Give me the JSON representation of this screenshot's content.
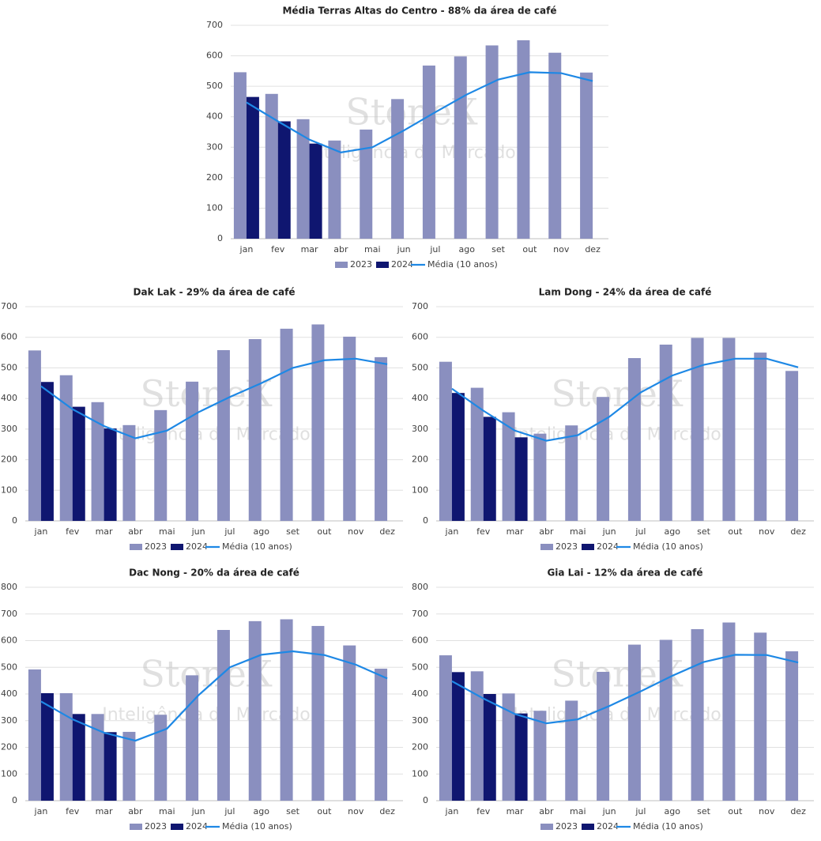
{
  "chart_data": [
    {
      "type": "bar",
      "title": "Média Terras Altas do Centro - 88% da área de café",
      "watermark": "StoneX",
      "watermark_subtitle": "Inteligência de Mercado",
      "categories": [
        "jan",
        "fev",
        "mar",
        "abr",
        "mai",
        "jun",
        "jul",
        "ago",
        "set",
        "out",
        "nov",
        "dez"
      ],
      "ylim": [
        0,
        700
      ],
      "yticks": [
        0,
        100,
        200,
        300,
        400,
        500,
        600,
        700
      ],
      "grid": true,
      "series": [
        {
          "name": "2023",
          "type": "bar",
          "color": "#8a8fbf",
          "values": [
            546,
            475,
            392,
            322,
            358,
            458,
            568,
            598,
            634,
            651,
            610,
            545
          ]
        },
        {
          "name": "2024",
          "type": "bar",
          "color": "#0f1670",
          "values": [
            465,
            385,
            312,
            null,
            null,
            null,
            null,
            null,
            null,
            null,
            null,
            null
          ]
        },
        {
          "name": "Média (10 anos)",
          "type": "line",
          "color": "#1e88e5",
          "values": [
            447,
            385,
            325,
            283,
            300,
            355,
            415,
            473,
            522,
            546,
            543,
            517
          ]
        }
      ]
    },
    {
      "type": "bar",
      "title": "Dak Lak - 29% da área de café",
      "watermark": "StoneX",
      "watermark_subtitle": "Inteligência de Mercado",
      "categories": [
        "jan",
        "fev",
        "mar",
        "abr",
        "mai",
        "jun",
        "jul",
        "ago",
        "set",
        "out",
        "nov",
        "dez"
      ],
      "ylim": [
        0,
        700
      ],
      "yticks": [
        0,
        100,
        200,
        300,
        400,
        500,
        600,
        700
      ],
      "grid": true,
      "series": [
        {
          "name": "2023",
          "type": "bar",
          "color": "#8a8fbf",
          "values": [
            557,
            476,
            388,
            313,
            362,
            455,
            558,
            594,
            628,
            642,
            602,
            535
          ]
        },
        {
          "name": "2024",
          "type": "bar",
          "color": "#0f1670",
          "values": [
            454,
            373,
            302,
            null,
            null,
            null,
            null,
            null,
            null,
            null,
            null,
            null
          ]
        },
        {
          "name": "Média (10 anos)",
          "type": "line",
          "color": "#1e88e5",
          "values": [
            440,
            365,
            310,
            270,
            295,
            355,
            405,
            450,
            500,
            525,
            530,
            512
          ]
        }
      ]
    },
    {
      "type": "bar",
      "title": "Lam Dong - 24% da área de café",
      "watermark": "StoneX",
      "watermark_subtitle": "Inteligência de Mercado",
      "categories": [
        "jan",
        "fev",
        "mar",
        "abr",
        "mai",
        "jun",
        "jul",
        "ago",
        "set",
        "out",
        "nov",
        "dez"
      ],
      "ylim": [
        0,
        700
      ],
      "yticks": [
        0,
        100,
        200,
        300,
        400,
        500,
        600,
        700
      ],
      "grid": true,
      "series": [
        {
          "name": "2023",
          "type": "bar",
          "color": "#8a8fbf",
          "values": [
            520,
            435,
            355,
            285,
            312,
            405,
            532,
            576,
            598,
            598,
            550,
            490
          ]
        },
        {
          "name": "2024",
          "type": "bar",
          "color": "#0f1670",
          "values": [
            418,
            340,
            273,
            null,
            null,
            null,
            null,
            null,
            null,
            null,
            null,
            null
          ]
        },
        {
          "name": "Média (10 anos)",
          "type": "line",
          "color": "#1e88e5",
          "values": [
            432,
            360,
            295,
            262,
            280,
            340,
            420,
            475,
            510,
            530,
            530,
            502
          ]
        }
      ]
    },
    {
      "type": "bar",
      "title": "Dac Nong - 20% da área de café",
      "watermark": "StoneX",
      "watermark_subtitle": "Inteligência de Mercado",
      "categories": [
        "jan",
        "fev",
        "mar",
        "abr",
        "mai",
        "jun",
        "jul",
        "ago",
        "set",
        "out",
        "nov",
        "dez"
      ],
      "ylim": [
        0,
        800
      ],
      "yticks": [
        0,
        100,
        200,
        300,
        400,
        500,
        600,
        700,
        800
      ],
      "grid": true,
      "series": [
        {
          "name": "2023",
          "type": "bar",
          "color": "#8a8fbf",
          "values": [
            492,
            403,
            325,
            258,
            322,
            470,
            640,
            673,
            680,
            655,
            582,
            495
          ]
        },
        {
          "name": "2024",
          "type": "bar",
          "color": "#0f1670",
          "values": [
            403,
            325,
            257,
            null,
            null,
            null,
            null,
            null,
            null,
            null,
            null,
            null
          ]
        },
        {
          "name": "Média (10 anos)",
          "type": "line",
          "color": "#1e88e5",
          "values": [
            372,
            305,
            255,
            225,
            270,
            395,
            500,
            547,
            560,
            546,
            510,
            458
          ]
        }
      ]
    },
    {
      "type": "bar",
      "title": "Gia Lai - 12% da área de café",
      "watermark": "StoneX",
      "watermark_subtitle": "Inteligência de Mercado",
      "categories": [
        "jan",
        "fev",
        "mar",
        "abr",
        "mai",
        "jun",
        "jul",
        "ago",
        "set",
        "out",
        "nov",
        "dez"
      ],
      "ylim": [
        0,
        800
      ],
      "yticks": [
        0,
        100,
        200,
        300,
        400,
        500,
        600,
        700,
        800
      ],
      "grid": true,
      "series": [
        {
          "name": "2023",
          "type": "bar",
          "color": "#8a8fbf",
          "values": [
            545,
            485,
            402,
            337,
            375,
            483,
            585,
            603,
            643,
            668,
            630,
            560
          ]
        },
        {
          "name": "2024",
          "type": "bar",
          "color": "#0f1670",
          "values": [
            482,
            400,
            327,
            null,
            null,
            null,
            null,
            null,
            null,
            null,
            null,
            null
          ]
        },
        {
          "name": "Média (10 anos)",
          "type": "line",
          "color": "#1e88e5",
          "values": [
            448,
            383,
            325,
            290,
            305,
            355,
            410,
            468,
            520,
            547,
            546,
            518
          ]
        }
      ]
    }
  ]
}
